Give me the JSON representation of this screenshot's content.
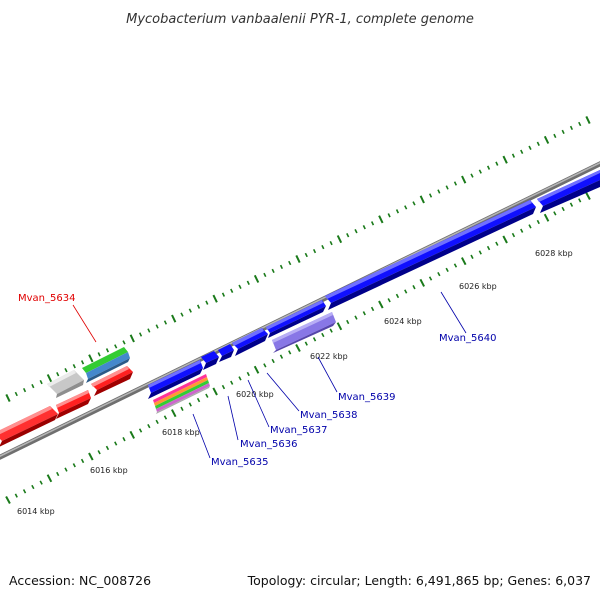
{
  "title": "Mycobacterium vanbaalenii PYR-1, complete genome",
  "footer": {
    "accession": "Accession: NC_008726",
    "summary": "Topology: circular; Length: 6,491,865 bp; Genes: 6,037"
  },
  "scale_labels": [
    "6014 kbp",
    "6016 kbp",
    "6018 kbp",
    "6020 kbp",
    "6022 kbp",
    "6024 kbp",
    "6026 kbp",
    "6028 kbp"
  ],
  "gene_labels": [
    {
      "text": "Mvan_5634",
      "color": "#e00000"
    },
    {
      "text": "Mvan_5635",
      "color": "#0000aa"
    },
    {
      "text": "Mvan_5636",
      "color": "#0000aa"
    },
    {
      "text": "Mvan_5637",
      "color": "#0000aa"
    },
    {
      "text": "Mvan_5638",
      "color": "#0000aa"
    },
    {
      "text": "Mvan_5639",
      "color": "#0000aa"
    },
    {
      "text": "Mvan_5640",
      "color": "#0000aa"
    }
  ],
  "colors": {
    "backbone": "#8a8a8a",
    "forward_cds": "#0000ee",
    "reverse_cds": "#ee0000",
    "ticks": "#1a7a1a",
    "highlight_feature": "#8a7ae6",
    "grey_feature": "#bfbfbf"
  }
}
